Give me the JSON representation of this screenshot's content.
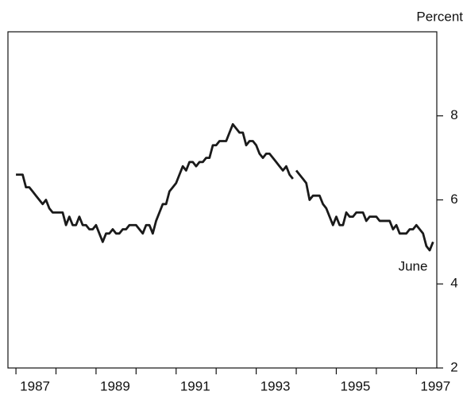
{
  "chart_data": {
    "type": "line",
    "unit_label": "Percent",
    "annotation": "June",
    "xlim": [
      1986.8,
      1997.51
    ],
    "ylim": [
      2,
      10
    ],
    "yticks": [
      2,
      4,
      6,
      8
    ],
    "xticks": [
      1987,
      1989,
      1991,
      1993,
      1995,
      1997
    ],
    "xminor_ticks": [
      1987,
      1988,
      1989,
      1990,
      1991,
      1992,
      1993,
      1994,
      1995,
      1996,
      1997
    ],
    "series": [
      {
        "color": "#1a1a1a",
        "x": [
          1987,
          1987.083,
          1987.167,
          1987.25,
          1987.333,
          1987.417,
          1987.5,
          1987.583,
          1987.667,
          1987.75,
          1987.833,
          1987.917,
          1988,
          1988.083,
          1988.167,
          1988.25,
          1988.333,
          1988.417,
          1988.5,
          1988.583,
          1988.667,
          1988.75,
          1988.833,
          1988.917,
          1989,
          1989.083,
          1989.167,
          1989.25,
          1989.333,
          1989.417,
          1989.5,
          1989.583,
          1989.667,
          1989.75,
          1989.833,
          1989.917,
          1990,
          1990.083,
          1990.167,
          1990.25,
          1990.333,
          1990.417,
          1990.5,
          1990.583,
          1990.667,
          1990.75,
          1990.833,
          1990.917,
          1991,
          1991.083,
          1991.167,
          1991.25,
          1991.333,
          1991.417,
          1991.5,
          1991.583,
          1991.667,
          1991.75,
          1991.833,
          1991.917,
          1992,
          1992.083,
          1992.167,
          1992.25,
          1992.333,
          1992.417,
          1992.5,
          1992.583,
          1992.667,
          1992.75,
          1992.833,
          1992.917,
          1993,
          1993.083,
          1993.167,
          1993.25,
          1993.333,
          1993.417,
          1993.5,
          1993.583,
          1993.667,
          1993.75,
          1993.833,
          1993.917,
          1993.958,
          1994,
          1994.083,
          1994.167,
          1994.25,
          1994.333,
          1994.417,
          1994.5,
          1994.583,
          1994.667,
          1994.75,
          1994.833,
          1994.917,
          1995,
          1995.083,
          1995.167,
          1995.25,
          1995.333,
          1995.417,
          1995.5,
          1995.583,
          1995.667,
          1995.75,
          1995.833,
          1995.917,
          1996,
          1996.083,
          1996.167,
          1996.25,
          1996.333,
          1996.417,
          1996.5,
          1996.583,
          1996.667,
          1996.75,
          1996.833,
          1996.917,
          1997,
          1997.083,
          1997.167,
          1997.25,
          1997.333,
          1997.417
        ],
        "values": [
          6.6,
          6.6,
          6.6,
          6.3,
          6.3,
          6.2,
          6.1,
          6.0,
          5.9,
          6.0,
          5.8,
          5.7,
          5.7,
          5.7,
          5.7,
          5.4,
          5.6,
          5.4,
          5.4,
          5.6,
          5.4,
          5.4,
          5.3,
          5.3,
          5.4,
          5.2,
          5.0,
          5.2,
          5.2,
          5.3,
          5.2,
          5.2,
          5.3,
          5.3,
          5.4,
          5.4,
          5.4,
          5.3,
          5.2,
          5.4,
          5.4,
          5.2,
          5.5,
          5.7,
          5.9,
          5.9,
          6.2,
          6.3,
          6.4,
          6.6,
          6.8,
          6.7,
          6.9,
          6.9,
          6.8,
          6.9,
          6.9,
          7.0,
          7.0,
          7.3,
          7.3,
          7.4,
          7.4,
          7.4,
          7.6,
          7.8,
          7.7,
          7.6,
          7.6,
          7.3,
          7.4,
          7.4,
          7.3,
          7.1,
          7.0,
          7.1,
          7.1,
          7.0,
          6.9,
          6.8,
          6.7,
          6.8,
          6.6,
          6.5,
          null,
          6.7,
          6.6,
          6.5,
          6.4,
          6.0,
          6.1,
          6.1,
          6.1,
          5.9,
          5.8,
          5.6,
          5.4,
          5.6,
          5.4,
          5.4,
          5.7,
          5.6,
          5.6,
          5.7,
          5.7,
          5.7,
          5.5,
          5.6,
          5.6,
          5.6,
          5.5,
          5.5,
          5.5,
          5.5,
          5.3,
          5.4,
          5.2,
          5.2,
          5.2,
          5.3,
          5.3,
          5.4,
          5.3,
          5.2,
          4.9,
          4.8,
          5.0
        ]
      }
    ]
  }
}
